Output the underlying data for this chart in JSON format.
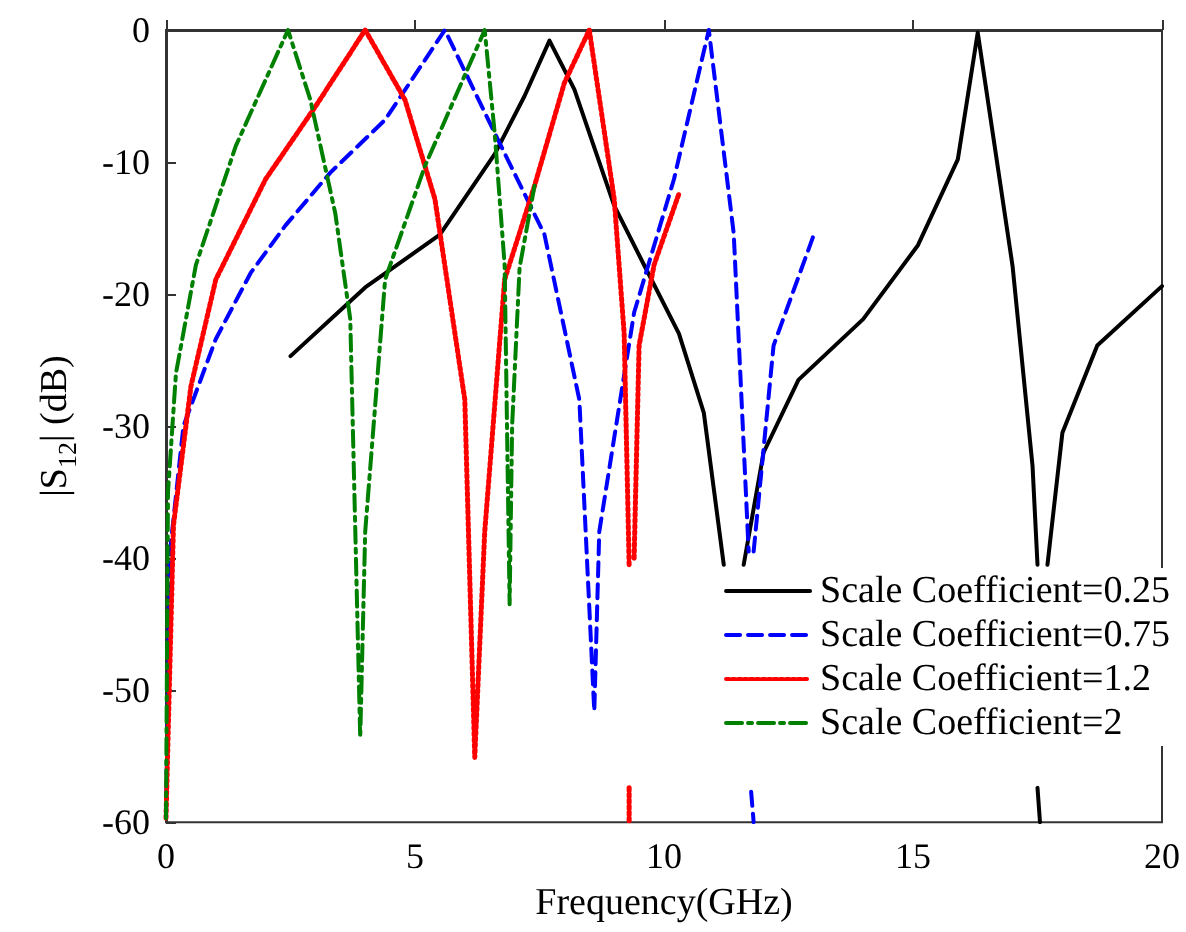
{
  "chart_data": {
    "type": "line",
    "xlabel": "Frequency(GHz)",
    "ylabel": "|S$_{12}$| (dB)",
    "xlim": [
      0,
      20
    ],
    "xticks": [
      0,
      5,
      10,
      15,
      20
    ],
    "ylim": [
      -60,
      0
    ],
    "yticks": [
      -60,
      -50,
      -40,
      -30,
      -20,
      -10,
      0
    ],
    "grid": false,
    "legend": "bottom right",
    "marker": "none",
    "series": [
      {
        "name": "Scale Coefficient=0.25",
        "color": "#000000",
        "line_style": "solid",
        "x": [
          2.5,
          4,
          5.5,
          6.6,
          7.2,
          7.7,
          8.2,
          9.0,
          9.6,
          10.3,
          10.8,
          11.2,
          null,
          11.6,
          12.0,
          12.7,
          14.0,
          15.1,
          15.9,
          16.3,
          17.0,
          17.4,
          17.5,
          null,
          17.5,
          17.55,
          null,
          17.7,
          18.0,
          18.7,
          20
        ],
        "values": [
          -24.7,
          -19.5,
          -15.5,
          -9.4,
          -5,
          -0.8,
          -4.5,
          -13.3,
          -17.8,
          -23,
          -29,
          -40.5,
          null,
          -40.5,
          -32,
          -26.5,
          -21.9,
          -16.3,
          -9.8,
          -0.2,
          -17.9,
          -33,
          -40.5,
          null,
          -57.4,
          -60,
          null,
          -40.5,
          -30.5,
          -23.9,
          -19.4
        ]
      },
      {
        "name": "Scale Coefficient=0.75",
        "color": "#0000ff",
        "line_style": "dashed",
        "x": [
          0,
          0.08,
          0.35,
          1.0,
          1.7,
          2.4,
          3.3,
          4.4,
          5.6,
          6.6,
          7.6,
          8.3,
          8.6,
          8.7,
          9.4,
          10.2,
          10.9,
          11.4,
          11.7,
          null,
          11.75,
          11.8,
          null,
          11.8,
          12.2,
          13.0
        ],
        "values": [
          -59.7,
          -39.5,
          -30,
          -23.4,
          -18.4,
          -14.8,
          -10.8,
          -6.8,
          0,
          -7.8,
          -15.5,
          -28,
          -51.6,
          -38,
          -21.4,
          -11.3,
          0,
          -15.4,
          -39.5,
          null,
          -57.7,
          -60,
          null,
          -39.5,
          -23.9,
          -15.6
        ]
      },
      {
        "name": "Scale Coefficient=1.2",
        "color": "#ff0000",
        "line_style": "dotted",
        "x": [
          0,
          0.15,
          0.5,
          1.0,
          2.0,
          3.0,
          4.0,
          4.8,
          5.4,
          6.0,
          6.2,
          6.4,
          6.8,
          7.4,
          8.0,
          8.5,
          9.0,
          9.2,
          9.3,
          null,
          9.3,
          9.3,
          null,
          9.4,
          9.5,
          9.8,
          10.3
        ],
        "values": [
          -59.7,
          -37.5,
          -27,
          -18.9,
          -11.3,
          -5.8,
          0,
          -5.3,
          -12.8,
          -28,
          -55.1,
          -38,
          -18.9,
          -11.8,
          -4,
          0,
          -12.8,
          -23,
          -40.5,
          null,
          -57.4,
          -60,
          null,
          -40,
          -23.9,
          -17.8,
          -12.4
        ]
      },
      {
        "name": "Scale Coefficient=2",
        "color": "#008000",
        "line_style": "dashdot",
        "x": [
          0,
          0.04,
          0.2,
          0.6,
          1.4,
          2.45,
          2.9,
          3.4,
          3.7,
          3.9,
          4.0,
          4.4,
          5.2,
          6.4,
          6.6,
          6.8,
          6.9,
          6.95,
          7.1,
          7.4
        ],
        "values": [
          -59.7,
          -35,
          -26,
          -17.8,
          -8.8,
          0,
          -5.3,
          -13.9,
          -21.9,
          -53.6,
          -38,
          -18.9,
          -10.3,
          0,
          -7.8,
          -17.8,
          -43.5,
          -30,
          -18,
          -11.8
        ]
      }
    ]
  }
}
